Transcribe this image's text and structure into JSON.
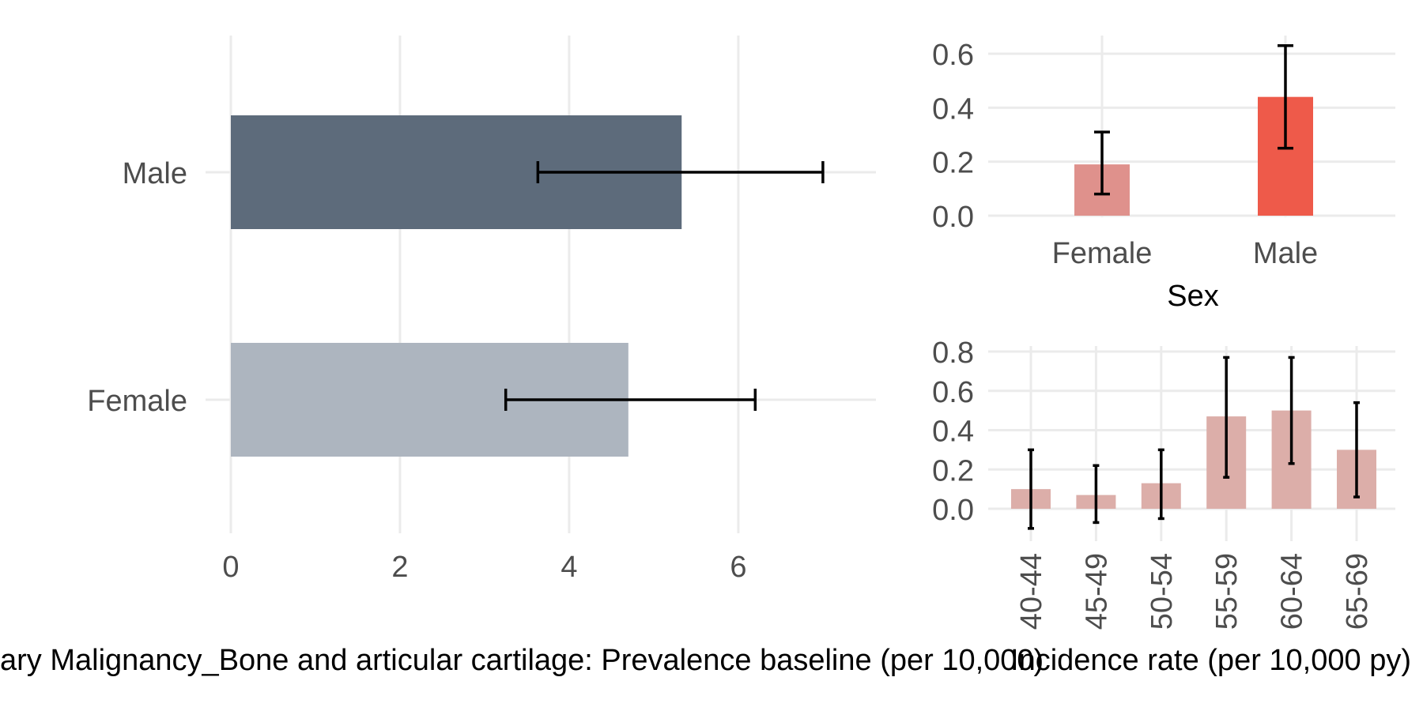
{
  "colors": {
    "male_main": "#5d6b7b",
    "female_main": "#adb5bf",
    "male_sex": "#ee5a4a",
    "female_sex": "#df918c",
    "age": "#dcaea9",
    "grid": "#ebebeb"
  },
  "chart_data": [
    {
      "type": "bar",
      "orientation": "horizontal",
      "categories": [
        "Female",
        "Male"
      ],
      "values": [
        4.7,
        5.33
      ],
      "error_low": [
        3.25,
        3.63
      ],
      "error_high": [
        6.2,
        7.0
      ],
      "xlim": [
        0,
        7.3
      ],
      "xticks": [
        "0",
        "2",
        "4",
        "6"
      ],
      "xlabel": "ary Malignancy_Bone and articular cartilage: Prevalence baseline (per 10,000)",
      "ylabel": "",
      "grid": true
    },
    {
      "type": "bar",
      "categories": [
        "Female",
        "Male"
      ],
      "values": [
        0.19,
        0.44
      ],
      "error_low": [
        0.08,
        0.25
      ],
      "error_high": [
        0.31,
        0.63
      ],
      "ylim": [
        -0.02,
        0.67
      ],
      "yticks": [
        "0.0",
        "0.2",
        "0.4",
        "0.6"
      ],
      "xlabel": "Sex",
      "ylabel": "",
      "grid": true
    },
    {
      "type": "bar",
      "categories": [
        "40-44",
        "45-49",
        "50-54",
        "55-59",
        "60-64",
        "65-69"
      ],
      "values": [
        0.1,
        0.07,
        0.13,
        0.47,
        0.5,
        0.3
      ],
      "error_low": [
        -0.1,
        -0.07,
        -0.05,
        0.16,
        0.23,
        0.06
      ],
      "error_high": [
        0.3,
        0.22,
        0.3,
        0.77,
        0.77,
        0.54
      ],
      "ylim": [
        -0.13,
        0.81
      ],
      "yticks": [
        "0.0",
        "0.2",
        "0.4",
        "0.6",
        "0.8"
      ],
      "xlabel": "Incidence rate (per 10,000 py)",
      "ylabel": "",
      "grid": true
    }
  ]
}
